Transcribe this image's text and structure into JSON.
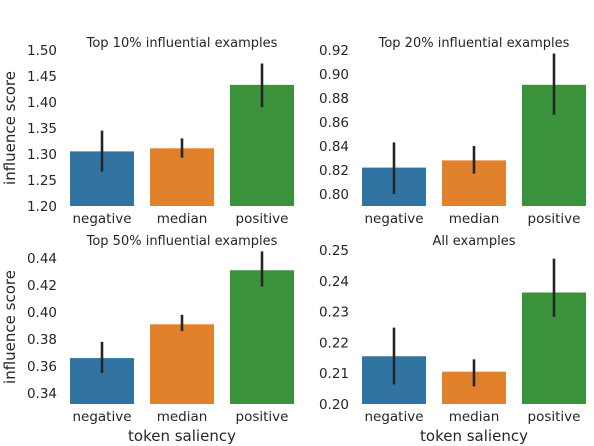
{
  "colors": {
    "negative": "#3274a1",
    "median": "#e1812c",
    "positive": "#3a923a",
    "errorbar": "#262626",
    "text": "#262626"
  },
  "chart_data": [
    {
      "type": "bar",
      "title": "Top 10% influential examples",
      "categories": [
        "negative",
        "median",
        "positive"
      ],
      "values": [
        1.305,
        1.311,
        1.433
      ],
      "error_low": [
        1.266,
        1.293,
        1.39
      ],
      "error_high": [
        1.345,
        1.33,
        1.474
      ],
      "ylim": [
        1.2,
        1.5
      ],
      "yticks": [
        1.2,
        1.25,
        1.3,
        1.35,
        1.4,
        1.45,
        1.5
      ],
      "ytick_labels": [
        "1.20",
        "1.25",
        "1.30",
        "1.35",
        "1.40",
        "1.45",
        "1.50"
      ],
      "xlabel": "",
      "ylabel": "influence score"
    },
    {
      "type": "bar",
      "title": "Top 20% influential examples",
      "categories": [
        "negative",
        "median",
        "positive"
      ],
      "values": [
        0.822,
        0.828,
        0.891
      ],
      "error_low": [
        0.8,
        0.817,
        0.866
      ],
      "error_high": [
        0.843,
        0.84,
        0.917
      ],
      "ylim": [
        0.79,
        0.92
      ],
      "yticks": [
        0.8,
        0.82,
        0.84,
        0.86,
        0.88,
        0.9,
        0.92
      ],
      "ytick_labels": [
        "0.80",
        "0.82",
        "0.84",
        "0.86",
        "0.88",
        "0.90",
        "0.92"
      ],
      "xlabel": "",
      "ylabel": ""
    },
    {
      "type": "bar",
      "title": "Top 50% influential examples",
      "categories": [
        "negative",
        "median",
        "positive"
      ],
      "values": [
        0.366,
        0.391,
        0.431
      ],
      "error_low": [
        0.355,
        0.386,
        0.419
      ],
      "error_high": [
        0.378,
        0.398,
        0.445
      ],
      "ylim": [
        0.332,
        0.446
      ],
      "yticks": [
        0.34,
        0.36,
        0.38,
        0.4,
        0.42,
        0.44
      ],
      "ytick_labels": [
        "0.34",
        "0.36",
        "0.38",
        "0.40",
        "0.42",
        "0.44"
      ],
      "xlabel": "token saliency",
      "ylabel": "influence score"
    },
    {
      "type": "bar",
      "title": "All examples",
      "categories": [
        "negative",
        "median",
        "positive"
      ],
      "values": [
        0.2155,
        0.2105,
        0.2362
      ],
      "error_low": [
        0.2063,
        0.2057,
        0.2283
      ],
      "error_high": [
        0.2248,
        0.2145,
        0.2472
      ],
      "ylim": [
        0.2,
        0.25
      ],
      "yticks": [
        0.2,
        0.21,
        0.22,
        0.23,
        0.24,
        0.25
      ],
      "ytick_labels": [
        "0.20",
        "0.21",
        "0.22",
        "0.23",
        "0.24",
        "0.25"
      ],
      "xlabel": "token saliency",
      "ylabel": ""
    }
  ]
}
